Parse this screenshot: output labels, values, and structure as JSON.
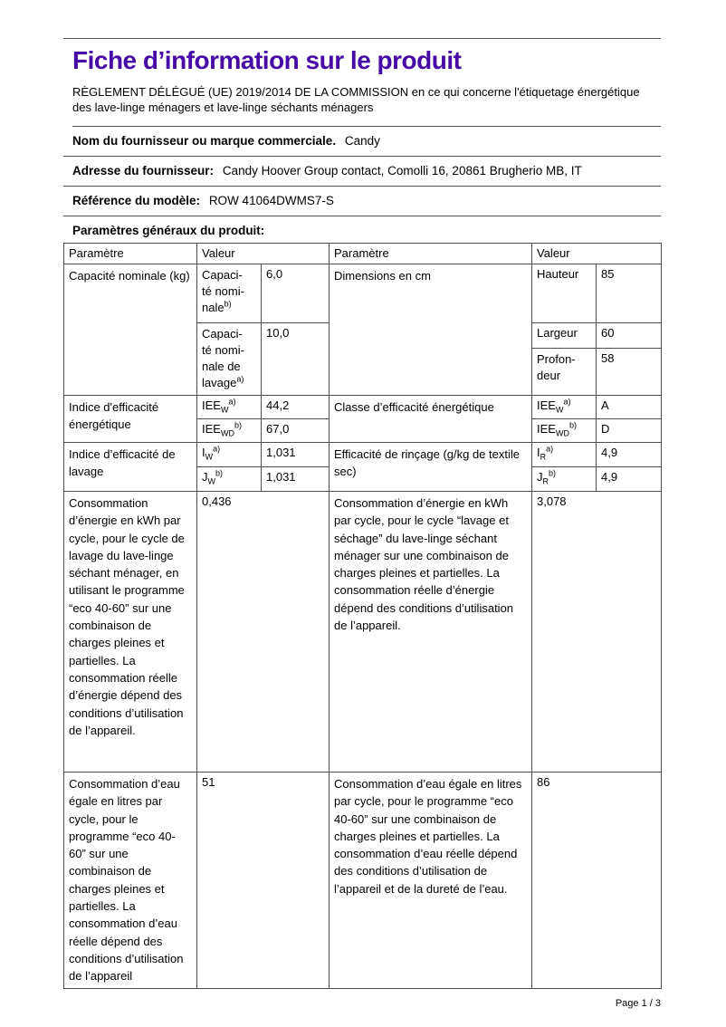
{
  "page": {
    "title": "Fiche d’information sur le produit",
    "title_color": "#470ba5",
    "subtitle": "RÈGLEMENT DÉLÉGUÉ (UE) 2019/2014 DE LA COMMISSION en ce qui concerne l'étiquetage énergétique des lave-linge ménagers et lave-linge séchants ménagers",
    "footer": "Page 1 / 3"
  },
  "supplier": {
    "name_label": "Nom du fournisseur ou marque commerciale.",
    "name_value": "Candy",
    "address_label": "Adresse du fournisseur:",
    "address_value": "Candy Hoover Group contact, Comolli 16, 20861 Brugherio MB, IT",
    "model_label": "Référence du modèle:",
    "model_value": "ROW 41064DWMS7-S",
    "general_params_label": "Paramètres généraux du produit:"
  },
  "table": {
    "header": {
      "param_left": "Paramètre",
      "value_left": "Valeur",
      "param_right": "Paramètre",
      "value_right": "Valeur"
    },
    "capacity": {
      "param": "Capacité nominale (kg)",
      "sub1": {
        "label": "Capaci-\nté nomi-\nnale",
        "sup": "b)",
        "value": "6,0"
      },
      "sub2": {
        "label": "Capaci-\nté nomi-\nnale de\nlavage",
        "sup": "a)",
        "value": "10,0"
      }
    },
    "dimensions": {
      "param": "Dimensions en cm",
      "rows": [
        {
          "label": "Hauteur",
          "value": "85"
        },
        {
          "label": "Largeur",
          "value": "60"
        },
        {
          "label": "Profon-\ndeur",
          "value": "58"
        }
      ]
    },
    "energy_index": {
      "param": "Indice d'efficacité énergétique",
      "rows": [
        {
          "base": "IEE",
          "sub": "W",
          "sup": "a)",
          "value": "44,2"
        },
        {
          "base": "IEE",
          "sub": "WD",
          "sup": "b)",
          "value": "67,0"
        }
      ]
    },
    "energy_class": {
      "param": "Classe d’efficacité énergétique",
      "rows": [
        {
          "base": "IEE",
          "sub": "W",
          "sup": "a)",
          "value": "A"
        },
        {
          "base": "IEE",
          "sub": "WD",
          "sup": "b)",
          "value": "D"
        }
      ]
    },
    "wash_index": {
      "param": "Indice d’efficacité de lavage",
      "rows": [
        {
          "base": "I",
          "sub": "W",
          "sup": "a)",
          "value": "1,031"
        },
        {
          "base": "J",
          "sub": "W",
          "sup": "b)",
          "value": "1,031"
        }
      ]
    },
    "rinse_efficiency": {
      "param": "Efficacité de rinçage (g/kg de textile sec)",
      "rows": [
        {
          "base": "I",
          "sub": "R",
          "sup": "a)",
          "value": "4,9"
        },
        {
          "base": "J",
          "sub": "R",
          "sup": "b)",
          "value": "4,9"
        }
      ]
    },
    "energy_wash": {
      "param": "Consommation d’énergie en kWh par cycle, pour le cycle de lavage du lave-linge séchant ménager, en utilisant le programme “eco 40-60” sur une combinaison de charges pleines et partielles. La consommation réelle d’énergie dépend des conditions d’utilisation de l’appareil.",
      "value": "0,436"
    },
    "energy_washdry": {
      "param": "Consommation d’énergie en kWh par cycle, pour le cycle “lavage et séchage” du lave-linge séchant ménager sur une combinaison de charges pleines et partielles. La consommation réelle d’énergie dépend des conditions d’utilisation de l’appareil.",
      "value": "3,078"
    },
    "water_wash": {
      "param": "Consommation d’eau égale en litres par cycle, pour le programme “eco 40-60” sur une combinaison de charges pleines et partielles. La consommation d’eau réelle dépend des conditions d’utilisation de l’appareil",
      "value": "51"
    },
    "water_washdry": {
      "param": "Consommation d’eau égale en litres par cycle, pour le programme “eco 40-60” sur une combinaison de charges pleines et partielles. La consommation d’eau réelle dépend des conditions d’utilisation de l’appareil et de la dureté de l’eau.",
      "value": "86"
    }
  }
}
